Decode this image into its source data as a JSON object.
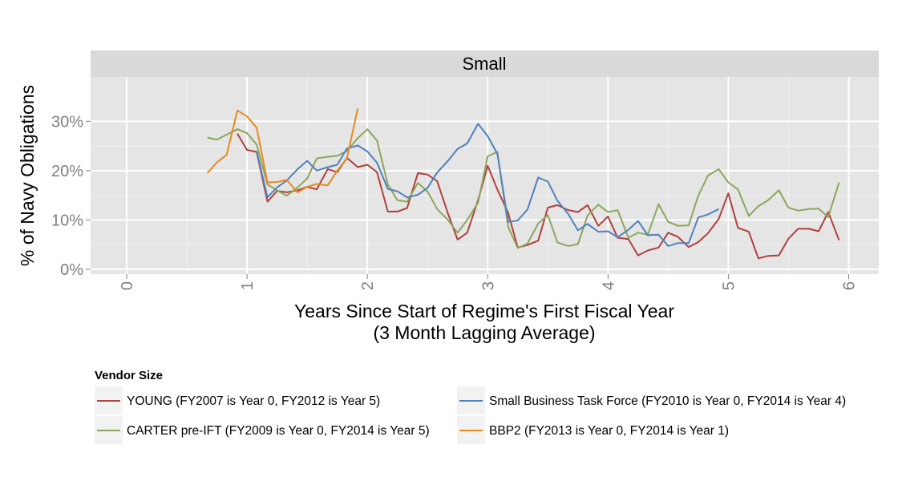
{
  "chart_data": {
    "type": "line",
    "facet": "Small",
    "xlabel": "Years Since Start of Regime's First Fiscal Year",
    "xlabel_line2": "(3 Month Lagging Average)",
    "ylabel": "% of Navy Obligations",
    "xlim": [
      -0.3,
      6.25
    ],
    "ylim": [
      -1,
      39
    ],
    "x_ticks": [
      0,
      1,
      2,
      3,
      4,
      5,
      6
    ],
    "x_tick_labels": [
      "0",
      "1",
      "2",
      "3",
      "4",
      "5",
      "6"
    ],
    "y_ticks": [
      0,
      10,
      20,
      30
    ],
    "y_tick_labels": [
      "0%",
      "10%",
      "20%",
      "30%"
    ],
    "grid": true,
    "legend_title": "Vendor Size",
    "legend_position": "bottom",
    "series": [
      {
        "name": "YOUNG (FY2007 is Year 0, FY2012 is Year 5)",
        "color": "#B0413E",
        "x": [
          0.92,
          1.0,
          1.08,
          1.17,
          1.25,
          1.33,
          1.42,
          1.5,
          1.58,
          1.67,
          1.75,
          1.83,
          1.92,
          2.0,
          2.08,
          2.17,
          2.25,
          2.33,
          2.42,
          2.5,
          2.58,
          2.67,
          2.75,
          2.83,
          2.92,
          3.0,
          3.08,
          3.17,
          3.25,
          3.33,
          3.42,
          3.5,
          3.58,
          3.67,
          3.75,
          3.83,
          3.92,
          4.0,
          4.08,
          4.17,
          4.25,
          4.33,
          4.42,
          4.5,
          4.58,
          4.67,
          4.75,
          4.83,
          4.92,
          5.0,
          5.08,
          5.17,
          5.25,
          5.33,
          5.42,
          5.5,
          5.58,
          5.67,
          5.75,
          5.83,
          5.92
        ],
        "y": [
          27.5,
          24.2,
          23.8,
          13.7,
          15.9,
          15.6,
          16.0,
          16.7,
          16.2,
          20.3,
          19.7,
          22.6,
          20.7,
          21.2,
          19.7,
          11.7,
          11.7,
          12.4,
          19.5,
          19.2,
          17.9,
          11.3,
          6.0,
          7.4,
          14.0,
          21.0,
          16.2,
          11.4,
          4.4,
          4.9,
          5.8,
          12.5,
          13.0,
          12.0,
          11.6,
          13.0,
          8.8,
          10.7,
          6.4,
          6.1,
          2.8,
          3.8,
          4.4,
          7.4,
          6.6,
          4.5,
          5.5,
          7.3,
          10.2,
          15.4,
          8.4,
          7.6,
          2.2,
          2.7,
          2.8,
          6.2,
          8.2,
          8.2,
          7.7,
          11.6,
          5.9
        ]
      },
      {
        "name": "CARTER pre-IFT (FY2009 is Year 0, FY2014 is Year 5)",
        "color": "#8DA55A",
        "x": [
          0.67,
          0.75,
          0.83,
          0.92,
          1.0,
          1.08,
          1.17,
          1.25,
          1.33,
          1.42,
          1.5,
          1.58,
          1.67,
          1.75,
          1.83,
          1.92,
          2.0,
          2.08,
          2.17,
          2.25,
          2.33,
          2.42,
          2.5,
          2.58,
          2.67,
          2.75,
          2.83,
          2.92,
          3.0,
          3.08,
          3.17,
          3.25,
          3.33,
          3.42,
          3.5,
          3.58,
          3.67,
          3.75,
          3.83,
          3.92,
          4.0,
          4.08,
          4.17,
          4.25,
          4.33,
          4.42,
          4.5,
          4.58,
          4.67,
          4.75,
          4.83,
          4.92,
          5.0,
          5.08,
          5.17,
          5.25,
          5.33,
          5.42,
          5.5,
          5.58,
          5.67,
          5.75,
          5.83,
          5.92
        ],
        "y": [
          26.7,
          26.3,
          27.3,
          28.4,
          27.6,
          25.3,
          17.2,
          16.0,
          14.9,
          16.6,
          18.4,
          22.5,
          22.8,
          23.0,
          24.0,
          26.6,
          28.4,
          26.1,
          17.2,
          14.0,
          13.7,
          17.5,
          15.8,
          12.2,
          10.0,
          7.4,
          10.0,
          13.5,
          22.9,
          23.8,
          8.6,
          4.3,
          5.2,
          9.3,
          11.0,
          5.4,
          4.7,
          5.1,
          10.9,
          13.1,
          11.6,
          12.0,
          6.4,
          7.4,
          7.0,
          13.2,
          9.6,
          8.8,
          8.9,
          14.9,
          19.0,
          20.3,
          17.6,
          16.2,
          10.8,
          12.8,
          14.0,
          16.0,
          12.5,
          11.9,
          12.2,
          12.3,
          10.6,
          17.6
        ]
      },
      {
        "name": "Small Business Task Force (FY2010 is Year 0, FY2014 is Year 4)",
        "color": "#4F81BD",
        "x": [
          1.08,
          1.17,
          1.25,
          1.33,
          1.42,
          1.5,
          1.58,
          1.67,
          1.75,
          1.83,
          1.92,
          2.0,
          2.08,
          2.17,
          2.25,
          2.33,
          2.42,
          2.5,
          2.58,
          2.67,
          2.75,
          2.83,
          2.92,
          3.0,
          3.08,
          3.17,
          3.25,
          3.33,
          3.42,
          3.5,
          3.58,
          3.67,
          3.75,
          3.83,
          3.92,
          4.0,
          4.08,
          4.17,
          4.25,
          4.33,
          4.42,
          4.5,
          4.58,
          4.67,
          4.75,
          4.83,
          4.92
        ],
        "y": [
          24.0,
          14.6,
          16.6,
          18.0,
          20.3,
          22.0,
          20.0,
          20.7,
          21.2,
          24.5,
          25.1,
          23.9,
          21.6,
          16.3,
          15.8,
          14.6,
          15.1,
          16.5,
          19.6,
          22.0,
          24.4,
          25.5,
          29.5,
          27.0,
          23.4,
          9.6,
          9.9,
          12.1,
          18.6,
          17.8,
          13.9,
          11.2,
          7.9,
          9.2,
          7.6,
          7.7,
          6.5,
          8.0,
          9.8,
          6.9,
          7.0,
          4.7,
          5.3,
          5.3,
          10.5,
          11.1,
          12.2
        ]
      },
      {
        "name": "BBP2 (FY2013 is Year 0, FY2014 is Year 1)",
        "color": "#E6891E",
        "x": [
          0.67,
          0.75,
          0.83,
          0.92,
          1.0,
          1.08,
          1.17,
          1.25,
          1.33,
          1.42,
          1.5,
          1.58,
          1.67,
          1.75,
          1.83,
          1.92
        ],
        "y": [
          19.5,
          21.7,
          23.2,
          32.2,
          31.0,
          28.7,
          17.6,
          17.7,
          18.1,
          15.6,
          16.7,
          17.3,
          17.0,
          20.0,
          22.5,
          32.6
        ]
      }
    ]
  }
}
